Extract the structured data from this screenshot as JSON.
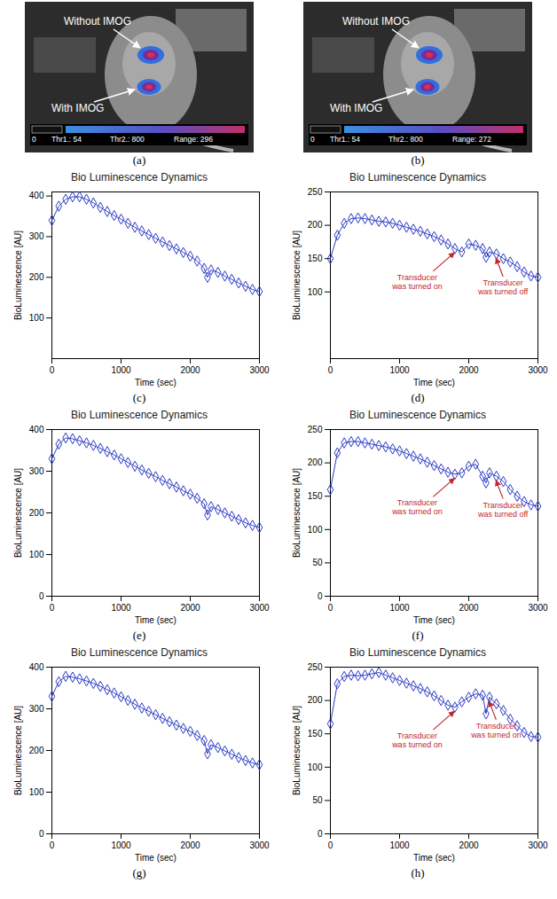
{
  "images": [
    {
      "panel": "(a)",
      "labels": [
        "Without IMOG",
        "With IMOG"
      ],
      "colorbar": [
        "0",
        "Thr1.: 54",
        "Thr2.: 800",
        "Range: 296"
      ]
    },
    {
      "panel": "(b)",
      "labels": [
        "Without IMOG",
        "With IMOG"
      ],
      "colorbar": [
        "0",
        "Thr1.: 54",
        "Thr2.: 800",
        "Range: 272"
      ]
    }
  ],
  "chart_data": [
    {
      "panel": "(c)",
      "type": "line",
      "title": "Bio Luminescence Dynamics",
      "x_label": "Time (sec)",
      "y_label": "BioLuminescence [AU]",
      "x": [
        0,
        100,
        200,
        300,
        400,
        500,
        600,
        700,
        800,
        900,
        1000,
        1100,
        1200,
        1300,
        1400,
        1500,
        1600,
        1700,
        1800,
        1900,
        2000,
        2100,
        2200,
        2250,
        2300,
        2400,
        2500,
        2600,
        2700,
        2800,
        2900,
        3000
      ],
      "values": [
        340,
        375,
        392,
        398,
        398,
        392,
        383,
        372,
        362,
        352,
        343,
        333,
        323,
        314,
        305,
        296,
        287,
        278,
        270,
        261,
        252,
        240,
        222,
        200,
        218,
        212,
        203,
        195,
        186,
        178,
        170,
        165
      ],
      "color": "#2b3bc4",
      "marker": "diamond",
      "xlim": [
        0,
        3000
      ],
      "xticks": [
        0,
        1000,
        2000,
        3000
      ],
      "ylim": [
        0,
        410
      ],
      "yticks": [
        100,
        200,
        300,
        400
      ]
    },
    {
      "panel": "(d)",
      "type": "line",
      "title": "Bio Luminescence Dynamics",
      "x_label": "Time (sec)",
      "y_label": "BioLuminescence [AU]",
      "x": [
        0,
        100,
        200,
        300,
        400,
        500,
        600,
        700,
        800,
        900,
        1000,
        1100,
        1200,
        1300,
        1400,
        1500,
        1600,
        1700,
        1800,
        1900,
        2000,
        2100,
        2200,
        2250,
        2300,
        2400,
        2500,
        2600,
        2700,
        2800,
        2900,
        3000
      ],
      "values": [
        150,
        185,
        203,
        210,
        211,
        210,
        208,
        206,
        205,
        203,
        200,
        197,
        194,
        191,
        187,
        183,
        178,
        172,
        165,
        160,
        172,
        170,
        165,
        152,
        160,
        157,
        150,
        145,
        138,
        130,
        124,
        122
      ],
      "color": "#2b3bc4",
      "marker": "diamond",
      "xlim": [
        0,
        3000
      ],
      "xticks": [
        0,
        1000,
        2000,
        3000
      ],
      "ylim": [
        0,
        250
      ],
      "yticks": [
        100,
        150,
        200,
        250
      ],
      "annotations": [
        {
          "text": "Transducer was turned on",
          "x": 1800,
          "y": 165,
          "color": "#c0282d"
        },
        {
          "text": "Transducer was turned off",
          "x": 2400,
          "y": 157,
          "color": "#c0282d"
        }
      ]
    },
    {
      "panel": "(e)",
      "type": "line",
      "title": "Bio Luminescence Dynamics",
      "x_label": "Time (sec)",
      "y_label": "BioLuminescence [AU]",
      "x": [
        0,
        100,
        200,
        300,
        400,
        500,
        600,
        700,
        800,
        900,
        1000,
        1100,
        1200,
        1300,
        1400,
        1500,
        1600,
        1700,
        1800,
        1900,
        2000,
        2100,
        2200,
        2250,
        2300,
        2400,
        2500,
        2600,
        2700,
        2800,
        2900,
        3000
      ],
      "values": [
        330,
        365,
        380,
        378,
        373,
        368,
        362,
        355,
        347,
        339,
        330,
        321,
        312,
        303,
        295,
        287,
        278,
        270,
        262,
        253,
        245,
        235,
        222,
        195,
        215,
        208,
        200,
        192,
        184,
        176,
        170,
        165
      ],
      "color": "#2b3bc4",
      "marker": "diamond",
      "xlim": [
        0,
        3000
      ],
      "xticks": [
        0,
        1000,
        2000,
        3000
      ],
      "ylim": [
        0,
        400
      ],
      "yticks": [
        0,
        100,
        200,
        300,
        400
      ]
    },
    {
      "panel": "(f)",
      "type": "line",
      "title": "Bio Luminescence Dynamics",
      "x_label": "Time (sec)",
      "y_label": "BioLuminescence [AU]",
      "x": [
        0,
        100,
        200,
        300,
        400,
        500,
        600,
        700,
        800,
        900,
        1000,
        1100,
        1200,
        1300,
        1400,
        1500,
        1600,
        1700,
        1800,
        1900,
        2000,
        2100,
        2200,
        2250,
        2300,
        2400,
        2500,
        2600,
        2700,
        2800,
        2900,
        3000
      ],
      "values": [
        160,
        215,
        230,
        232,
        232,
        230,
        228,
        226,
        224,
        221,
        218,
        214,
        210,
        206,
        201,
        196,
        191,
        186,
        183,
        185,
        195,
        198,
        180,
        170,
        185,
        180,
        172,
        160,
        150,
        142,
        137,
        135
      ],
      "color": "#2b3bc4",
      "marker": "diamond",
      "xlim": [
        0,
        3000
      ],
      "xticks": [
        0,
        1000,
        2000,
        3000
      ],
      "ylim": [
        0,
        250
      ],
      "yticks": [
        0,
        50,
        100,
        150,
        200,
        250
      ],
      "annotations": [
        {
          "text": "Transducer was turned on",
          "x": 1800,
          "y": 183,
          "color": "#c0282d"
        },
        {
          "text": "Transducer was turned off",
          "x": 2400,
          "y": 180,
          "color": "#c0282d"
        }
      ]
    },
    {
      "panel": "(g)",
      "type": "line",
      "title": "Bio Luminescence Dynamics",
      "x_label": "Time (sec)",
      "y_label": "BioLuminescence [AU]",
      "x": [
        0,
        100,
        200,
        300,
        400,
        500,
        600,
        700,
        800,
        900,
        1000,
        1100,
        1200,
        1300,
        1400,
        1500,
        1600,
        1700,
        1800,
        1900,
        2000,
        2100,
        2200,
        2250,
        2300,
        2400,
        2500,
        2600,
        2700,
        2800,
        2900,
        3000
      ],
      "values": [
        330,
        365,
        378,
        376,
        372,
        367,
        361,
        354,
        346,
        338,
        329,
        320,
        311,
        302,
        294,
        286,
        277,
        269,
        261,
        253,
        246,
        236,
        224,
        192,
        214,
        207,
        199,
        191,
        183,
        176,
        170,
        166
      ],
      "color": "#2b3bc4",
      "marker": "diamond",
      "xlim": [
        0,
        3000
      ],
      "xticks": [
        0,
        1000,
        2000,
        3000
      ],
      "ylim": [
        0,
        400
      ],
      "yticks": [
        0,
        100,
        200,
        300,
        400
      ]
    },
    {
      "panel": "(h)",
      "type": "line",
      "title": "Bio Luminescence Dynamics",
      "x_label": "Time (sec)",
      "y_label": "BioLuminescence [AU]",
      "x": [
        0,
        100,
        200,
        300,
        400,
        500,
        600,
        700,
        800,
        900,
        1000,
        1100,
        1200,
        1300,
        1400,
        1500,
        1600,
        1700,
        1800,
        1900,
        2000,
        2100,
        2200,
        2250,
        2300,
        2400,
        2500,
        2600,
        2700,
        2800,
        2900,
        3000
      ],
      "values": [
        165,
        225,
        236,
        238,
        237,
        238,
        240,
        242,
        238,
        234,
        230,
        226,
        222,
        218,
        213,
        207,
        200,
        193,
        190,
        198,
        205,
        210,
        208,
        180,
        205,
        195,
        185,
        172,
        162,
        152,
        146,
        145
      ],
      "color": "#2b3bc4",
      "marker": "diamond",
      "xlim": [
        0,
        3000
      ],
      "xticks": [
        0,
        1000,
        2000,
        3000
      ],
      "ylim": [
        0,
        250
      ],
      "yticks": [
        0,
        50,
        100,
        150,
        200,
        250
      ],
      "annotations": [
        {
          "text": "Transducer was turned on",
          "x": 1800,
          "y": 190,
          "color": "#c0282d"
        },
        {
          "text": "Transducer was turned on",
          "x": 2300,
          "y": 205,
          "color": "#c0282d"
        }
      ]
    }
  ]
}
